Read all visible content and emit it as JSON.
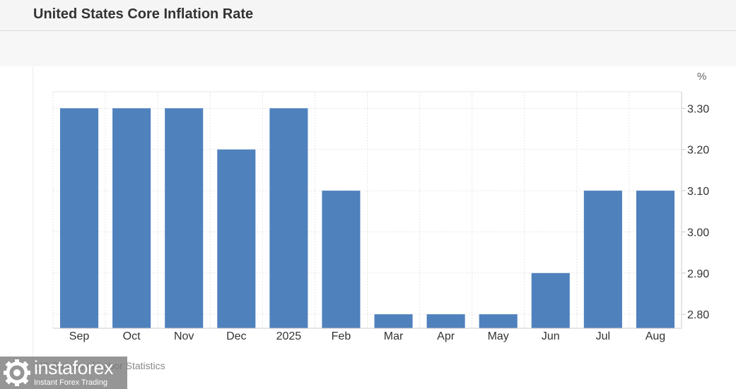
{
  "header": {
    "title": "United States Core Inflation Rate"
  },
  "source": "US Bureau of Labor Statistics",
  "logo": {
    "name": "instaforex",
    "tagline": "Instant Forex Trading"
  },
  "colors": {
    "bar": "#4f81bd",
    "grid": "#e6e6e6",
    "axis": "#cccccc",
    "text": "#333333"
  },
  "chart_data": {
    "type": "bar",
    "title": "United States Core Inflation Rate",
    "unit_label": "%",
    "categories": [
      "Sep",
      "Oct",
      "Nov",
      "Dec",
      "2025",
      "Feb",
      "Mar",
      "Apr",
      "May",
      "Jun",
      "Jul",
      "Aug"
    ],
    "values": [
      3.3,
      3.3,
      3.3,
      3.2,
      3.3,
      3.1,
      2.8,
      2.8,
      2.8,
      2.9,
      3.1,
      3.1
    ],
    "ylim": [
      2.766,
      3.34
    ],
    "yticks": [
      "2.80",
      "2.90",
      "3.00",
      "3.10",
      "3.20",
      "3.30"
    ],
    "grid": true,
    "legend": "none",
    "y_axis_side": "right"
  }
}
